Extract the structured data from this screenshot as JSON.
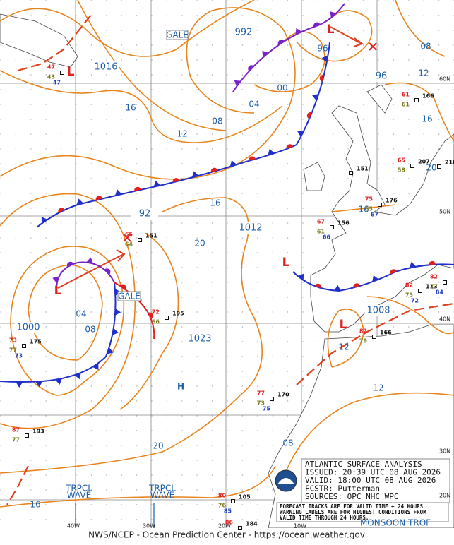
{
  "isobar_labels": [
    "1016",
    "992",
    "00",
    "04",
    "08",
    "12",
    "16",
    "96",
    "96",
    "08",
    "12",
    "16",
    "92",
    "1012",
    "20",
    "1000",
    "04",
    "08",
    "1023",
    "1008",
    "12",
    "12",
    "20",
    "08",
    "16",
    "16",
    "20",
    "16"
  ],
  "warnings": [
    "GALE",
    "GALE"
  ],
  "centers": {
    "high": "H",
    "low": "L"
  },
  "latitudes": [
    "60N",
    "50N",
    "40N",
    "30N",
    "20N"
  ],
  "longitudes": [
    "40W",
    "30W",
    "20W",
    "10W"
  ],
  "tropical_waves": [
    [
      "TRPCL",
      "WAVE"
    ],
    [
      "TRPCL",
      "WAVE"
    ]
  ],
  "monsoon": "MONSOON TROF",
  "info_box": [
    "ATLANTIC SURFACE ANALYSIS",
    "ISSUED: 20:39 UTC 08 AUG 2026",
    "VALID:  18:00 UTC 08 AUG 2026",
    "FCSTR:  Putterman",
    "SOURCES: OPC NHC WPC"
  ],
  "note": [
    "FORECAST TRACKS ARE FOR VALID TIME + 24 HOURS",
    "WARNING LABELS ARE FOR HIGHEST CONDITIONS FROM",
    "VALID TIME THROUGH 24 HOURS."
  ],
  "footer": "NWS/NCEP - Ocean Prediction Center - https://ocean.weather.gov",
  "stations": [
    {
      "red": "47",
      "olive": "43",
      "blue": "47"
    },
    {
      "red": "65",
      "black": "151",
      "olive": "64"
    },
    {
      "red": "72",
      "black": "195",
      "olive": "66"
    },
    {
      "red": "73",
      "black": "175",
      "olive": "77",
      "blue": "73"
    },
    {
      "red": "87",
      "black": "193",
      "olive": "77"
    },
    {
      "red": "77",
      "black": "170",
      "olive": "73",
      "blue": "75"
    },
    {
      "red": "80",
      "black": "105",
      "olive": "76",
      "blue": "85"
    },
    {
      "black": "151"
    },
    {
      "red": "61",
      "black": "166",
      "olive": "61"
    },
    {
      "red": "65",
      "black": "207",
      "olive": "58"
    },
    {
      "black": "210"
    },
    {
      "red": "75",
      "black": "176",
      "olive": "65",
      "blue": "67"
    },
    {
      "red": "67",
      "black": "156",
      "olive": "61",
      "blue": "66"
    },
    {
      "red": "82",
      "black": "113",
      "olive": "75",
      "blue": "72"
    },
    {
      "red": "82",
      "black": "166",
      "olive": "79"
    },
    {
      "red": "82",
      "olive": "77",
      "blue": "84"
    },
    {
      "red": "86",
      "black": "184"
    }
  ]
}
